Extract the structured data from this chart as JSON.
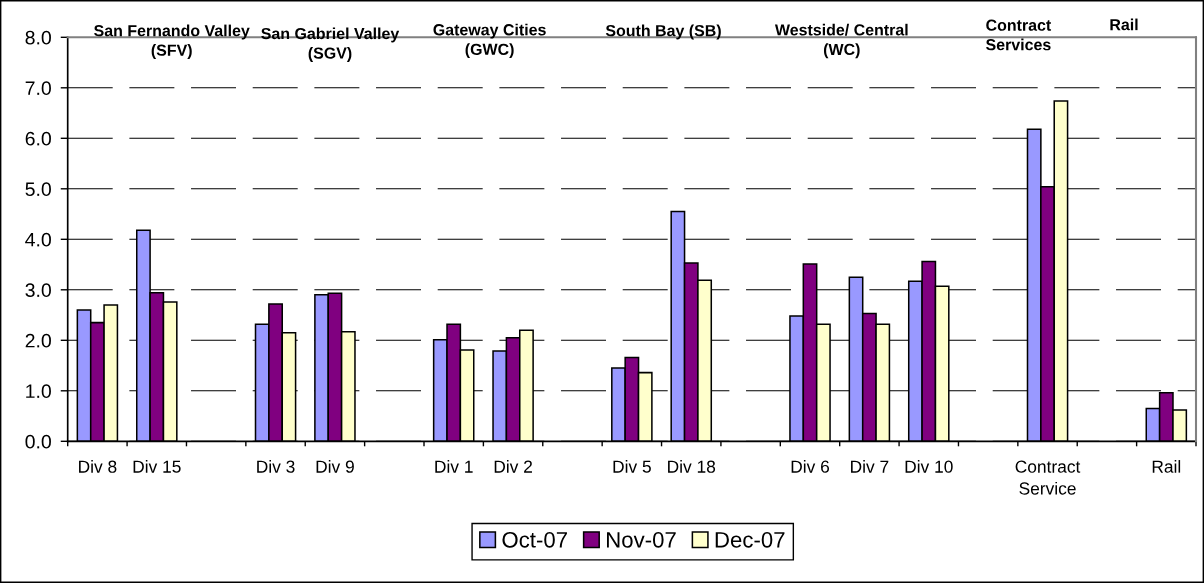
{
  "chart_data": {
    "type": "bar",
    "categories": [
      "Div 8",
      "Div 15",
      null,
      "Div 3",
      "Div 9",
      null,
      "Div 1",
      "Div 2",
      null,
      "Div 5",
      "Div 18",
      null,
      "Div 6",
      "Div 7",
      "Div 10",
      null,
      "Contract\nService",
      null,
      "Rail"
    ],
    "series": [
      {
        "name": "Oct-07",
        "color": "#9999ff",
        "values": [
          2.6,
          4.18,
          null,
          2.32,
          2.9,
          null,
          2.01,
          1.79,
          null,
          1.45,
          4.55,
          null,
          2.48,
          3.25,
          3.17,
          null,
          6.18,
          null,
          0.65
        ]
      },
      {
        "name": "Nov-07",
        "color": "#800080",
        "values": [
          2.35,
          2.94,
          null,
          2.72,
          2.93,
          null,
          2.32,
          2.05,
          null,
          1.66,
          3.53,
          null,
          3.51,
          2.53,
          3.56,
          null,
          5.04,
          null,
          0.96
        ]
      },
      {
        "name": "Dec-07",
        "color": "#ffffcc",
        "values": [
          2.7,
          2.76,
          null,
          2.15,
          2.17,
          null,
          1.81,
          2.2,
          null,
          1.36,
          3.19,
          null,
          2.32,
          2.32,
          3.07,
          null,
          6.74,
          null,
          0.62
        ]
      }
    ],
    "ylim": [
      0,
      8
    ],
    "yticks": [
      {
        "value": 0,
        "label": "0.0"
      },
      {
        "value": 1,
        "label": "1.0"
      },
      {
        "value": 2,
        "label": "2.0"
      },
      {
        "value": 3,
        "label": "3.0"
      },
      {
        "value": 4,
        "label": "4.0"
      },
      {
        "value": 5,
        "label": "5.0"
      },
      {
        "value": 6,
        "label": "6.0"
      },
      {
        "value": 7,
        "label": "7.0"
      },
      {
        "value": 8,
        "label": "8.0"
      }
    ],
    "grid": "y",
    "legend": "bottom",
    "annotations": [
      "San Fernando Valley\n(SFV)",
      "San Gabriel Valley\n(SGV)",
      "Gateway Cities\n(GWC)",
      "South Bay (SB)",
      "Westside/ Central\n(WC)",
      "Contract\nServices",
      "Rail"
    ]
  }
}
